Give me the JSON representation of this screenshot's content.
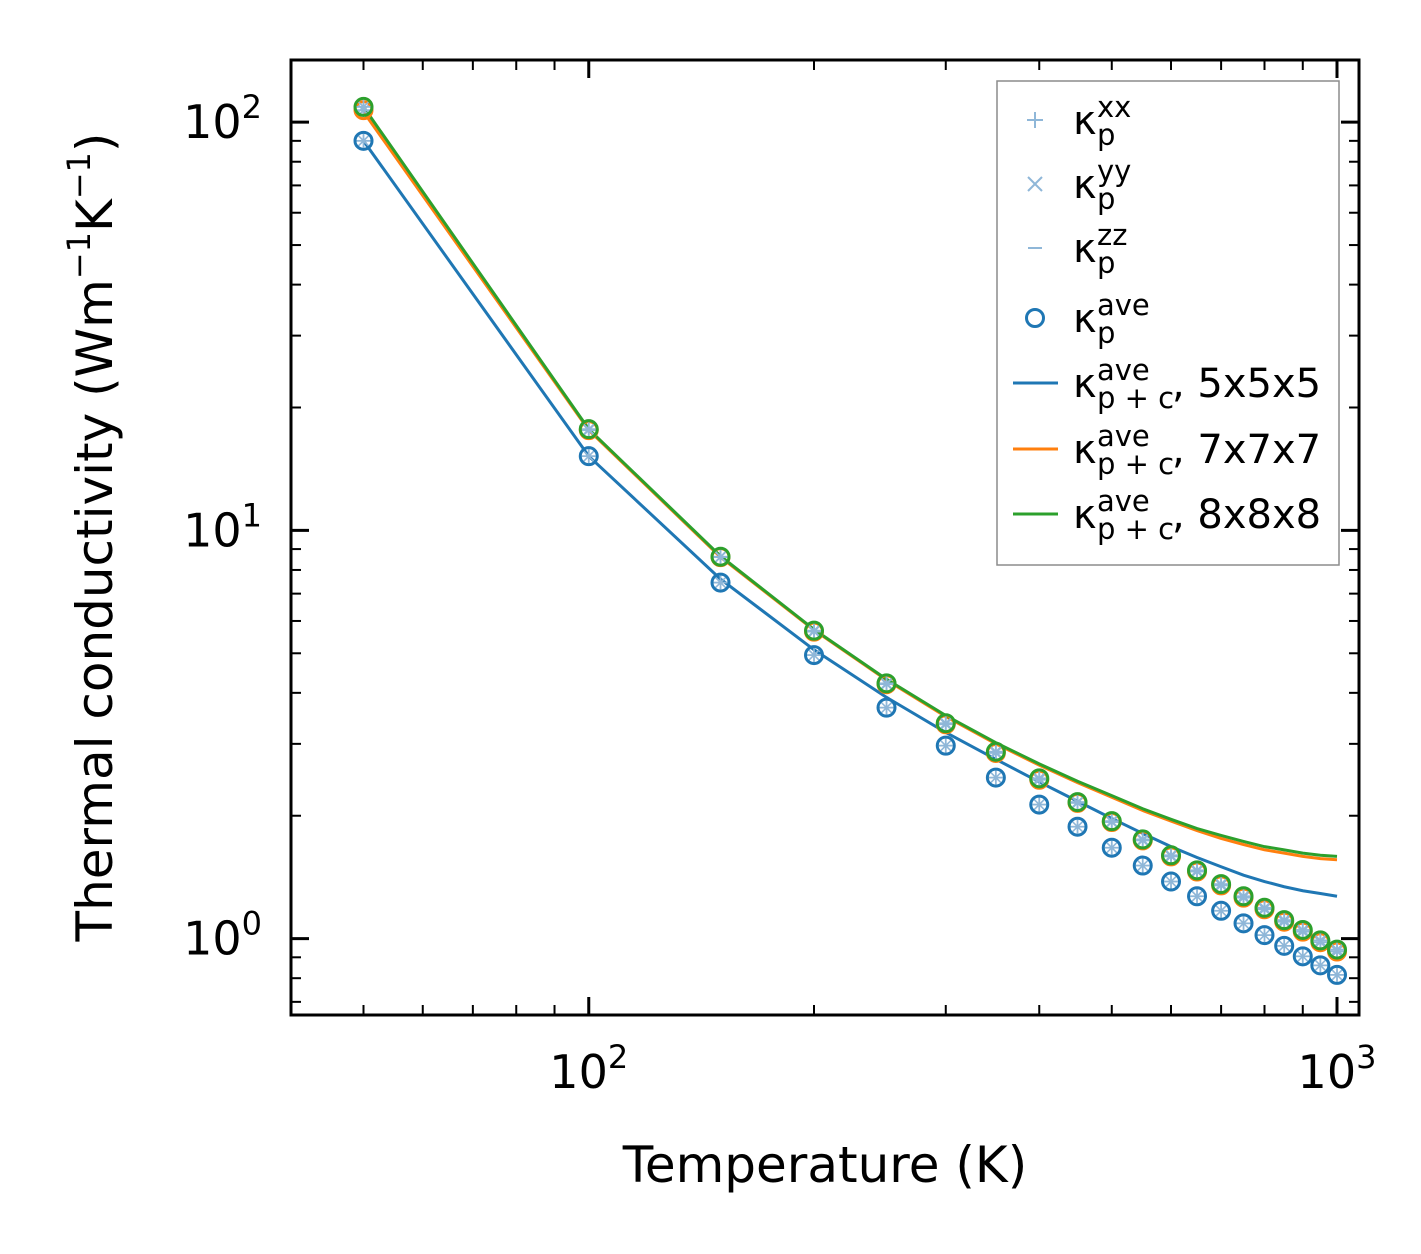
{
  "chart_data": {
    "type": "line",
    "title": "",
    "xlabel": "Temperature (K)",
    "ylabel": "Thermal conductivity (Wm⁻¹K⁻¹)",
    "xscale": "log",
    "yscale": "log",
    "xlim": [
      40,
      1070
    ],
    "ylim": [
      0.65,
      142
    ],
    "x_ticks": [
      {
        "base": "10",
        "exp": "2",
        "value": 100
      },
      {
        "base": "10",
        "exp": "3",
        "value": 1000
      }
    ],
    "y_ticks": [
      {
        "base": "10",
        "exp": "0",
        "value": 1
      },
      {
        "base": "10",
        "exp": "1",
        "value": 10
      },
      {
        "base": "10",
        "exp": "2",
        "value": 100
      }
    ],
    "legend_position": "top-right",
    "x": [
      50,
      100,
      150,
      200,
      250,
      300,
      350,
      400,
      450,
      500,
      550,
      600,
      650,
      700,
      750,
      800,
      850,
      900,
      950,
      1000
    ],
    "legend": [
      {
        "sym": "κ",
        "sub": "p",
        "sup": "xx",
        "suffix": "",
        "marker": "plus",
        "color": "#8fb7d8"
      },
      {
        "sym": "κ",
        "sub": "p",
        "sup": "yy",
        "suffix": "",
        "marker": "cross",
        "color": "#8fb7d8"
      },
      {
        "sym": "κ",
        "sub": "p",
        "sup": "zz",
        "suffix": "",
        "marker": "dash",
        "color": "#8fb7d8"
      },
      {
        "sym": "κ",
        "sub": "p",
        "sup": "ave",
        "suffix": "",
        "marker": "circle",
        "color": "#1f77b4"
      },
      {
        "sym": "κ",
        "sub": "p + c",
        "sup": "ave",
        "suffix": ", 5x5x5",
        "marker": "line",
        "color": "#1f77b4"
      },
      {
        "sym": "κ",
        "sub": "p + c",
        "sup": "ave",
        "suffix": ", 7x7x7",
        "marker": "line",
        "color": "#ff7f0e"
      },
      {
        "sym": "κ",
        "sub": "p + c",
        "sup": "ave",
        "suffix": ", 8x8x8",
        "marker": "line",
        "color": "#2ca02c"
      }
    ],
    "series": [
      {
        "name": "κ_p^ave 5x5x5 (markers)",
        "kind": "markers",
        "color": "#1f77b4",
        "values": [
          90,
          15.2,
          7.45,
          4.95,
          3.68,
          2.97,
          2.48,
          2.13,
          1.88,
          1.67,
          1.51,
          1.38,
          1.27,
          1.17,
          1.09,
          1.02,
          0.96,
          0.905,
          0.86,
          0.815
        ]
      },
      {
        "name": "κ_p^ave 7x7x7 (markers)",
        "kind": "markers",
        "color": "#ff7f0e",
        "values": [
          107,
          17.6,
          8.6,
          5.65,
          4.2,
          3.35,
          2.85,
          2.45,
          2.15,
          1.93,
          1.74,
          1.59,
          1.46,
          1.35,
          1.26,
          1.18,
          1.1,
          1.04,
          0.98,
          0.93
        ]
      },
      {
        "name": "κ_p^ave 8x8x8 (markers)",
        "kind": "markers",
        "color": "#2ca02c",
        "values": [
          109,
          17.7,
          8.62,
          5.68,
          4.22,
          3.37,
          2.87,
          2.47,
          2.16,
          1.94,
          1.75,
          1.6,
          1.47,
          1.36,
          1.27,
          1.19,
          1.11,
          1.05,
          0.99,
          0.94
        ]
      },
      {
        "name": "κ_p+c^ave, 5x5x5",
        "kind": "line",
        "color": "#1f77b4",
        "values": [
          90,
          15.2,
          7.6,
          5.1,
          3.9,
          3.2,
          2.75,
          2.42,
          2.17,
          1.97,
          1.81,
          1.68,
          1.58,
          1.5,
          1.43,
          1.38,
          1.34,
          1.31,
          1.29,
          1.27
        ]
      },
      {
        "name": "κ_p+c^ave, 7x7x7",
        "kind": "line",
        "color": "#ff7f0e",
        "values": [
          106,
          17.6,
          8.6,
          5.7,
          4.3,
          3.5,
          3.0,
          2.66,
          2.41,
          2.22,
          2.06,
          1.94,
          1.84,
          1.76,
          1.7,
          1.65,
          1.62,
          1.59,
          1.57,
          1.56
        ]
      },
      {
        "name": "κ_p+c^ave, 8x8x8",
        "kind": "line",
        "color": "#2ca02c",
        "values": [
          109,
          17.7,
          8.65,
          5.72,
          4.32,
          3.52,
          3.02,
          2.68,
          2.43,
          2.24,
          2.08,
          1.96,
          1.86,
          1.79,
          1.73,
          1.68,
          1.65,
          1.62,
          1.6,
          1.59
        ]
      }
    ]
  }
}
